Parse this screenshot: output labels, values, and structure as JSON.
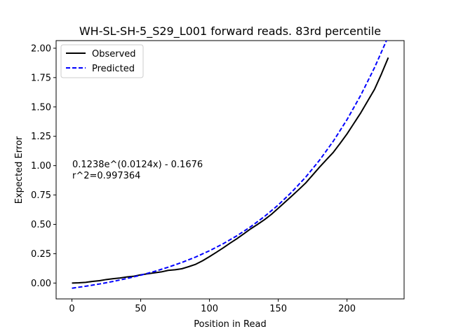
{
  "chart_data": {
    "type": "line",
    "title": "WH-SL-SH-5_S29_L001 forward reads. 83rd percentile",
    "xlabel": "Position in Read",
    "ylabel": "Expected Error",
    "xlim": [
      -11.5,
      241.5
    ],
    "ylim": [
      -0.135,
      2.065
    ],
    "xticks": [
      0,
      50,
      100,
      150,
      200
    ],
    "xtick_labels": [
      "0",
      "50",
      "100",
      "150",
      "200"
    ],
    "yticks": [
      0.0,
      0.25,
      0.5,
      0.75,
      1.0,
      1.25,
      1.5,
      1.75,
      2.0
    ],
    "ytick_labels": [
      "0.00",
      "0.25",
      "0.50",
      "0.75",
      "1.00",
      "1.25",
      "1.50",
      "1.75",
      "2.00"
    ],
    "grid": false,
    "legend_position": "top-left",
    "annotation_lines": [
      "0.1238e^(0.0124x) - 0.1676",
      "r^2=0.997364"
    ],
    "series": [
      {
        "name": "Observed",
        "color": "#000000",
        "dash": "solid",
        "x": [
          0,
          5,
          10,
          15,
          20,
          25,
          30,
          35,
          40,
          45,
          50,
          55,
          60,
          65,
          70,
          75,
          80,
          85,
          90,
          95,
          100,
          105,
          110,
          115,
          120,
          125,
          130,
          135,
          140,
          145,
          150,
          155,
          160,
          165,
          170,
          175,
          180,
          185,
          190,
          195,
          200,
          205,
          210,
          215,
          220,
          225,
          230
        ],
        "y": [
          0.0,
          0.002,
          0.006,
          0.014,
          0.02,
          0.03,
          0.037,
          0.043,
          0.052,
          0.058,
          0.07,
          0.079,
          0.087,
          0.095,
          0.108,
          0.113,
          0.122,
          0.14,
          0.16,
          0.19,
          0.225,
          0.262,
          0.3,
          0.34,
          0.378,
          0.42,
          0.462,
          0.5,
          0.54,
          0.585,
          0.637,
          0.69,
          0.743,
          0.797,
          0.853,
          0.92,
          0.987,
          1.05,
          1.113,
          1.19,
          1.27,
          1.36,
          1.45,
          1.55,
          1.65,
          1.78,
          1.92
        ]
      },
      {
        "name": "Predicted",
        "color": "#0000ff",
        "dash": "dashed",
        "x": [
          0,
          10,
          20,
          30,
          40,
          50,
          60,
          70,
          80,
          90,
          100,
          110,
          120,
          130,
          140,
          150,
          160,
          170,
          180,
          190,
          200,
          210,
          220,
          230
        ],
        "y": [
          -0.044,
          -0.027,
          -0.008,
          0.014,
          0.039,
          0.067,
          0.099,
          0.135,
          0.176,
          0.222,
          0.275,
          0.335,
          0.403,
          0.48,
          0.567,
          0.665,
          0.777,
          0.903,
          1.046,
          1.208,
          1.392,
          1.6,
          1.835,
          2.1
        ]
      }
    ]
  }
}
